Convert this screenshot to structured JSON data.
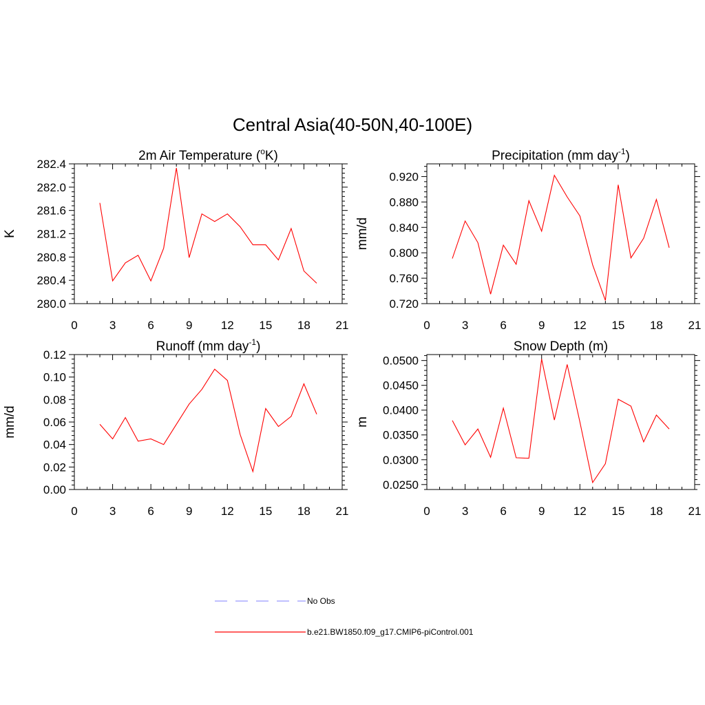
{
  "figure": {
    "title": "Central Asia(40-50N,40-100E)"
  },
  "colors": {
    "model_line": "#ff0000",
    "obs_line": "#9999ff",
    "axis": "#000000",
    "background": "#ffffff"
  },
  "legend": {
    "placement": "bottom-center",
    "entries": [
      {
        "label": "No Obs",
        "color": "#9999ff",
        "style": "dashed"
      },
      {
        "label": "b.e21.BW1850.f09_g17.CMIP6-piControl.001",
        "color": "#ff0000",
        "style": "solid"
      }
    ]
  },
  "chart_data": [
    {
      "type": "line",
      "title": "2m Air Temperature (",
      "title_sup": "o",
      "title_post": "K)",
      "ylabel": "K",
      "xlim": [
        0,
        21
      ],
      "xticks": [
        "0",
        "3",
        "6",
        "9",
        "12",
        "15",
        "18",
        "21"
      ],
      "ylim": [
        280.0,
        282.4
      ],
      "yticks": [
        "280.0",
        "280.4",
        "280.8",
        "281.2",
        "281.6",
        "282.0",
        "282.4"
      ],
      "grid": false,
      "series": [
        {
          "name": "b.e21.BW1850.f09_g17.CMIP6-piControl.001",
          "x": [
            2,
            3,
            4,
            5,
            6,
            7,
            8,
            9,
            10,
            11,
            12,
            13,
            14,
            15,
            16,
            17,
            18,
            19
          ],
          "y": [
            281.73,
            280.39,
            280.7,
            280.83,
            280.39,
            280.95,
            282.33,
            280.79,
            281.54,
            281.41,
            281.54,
            281.32,
            281.01,
            281.01,
            280.75,
            281.29,
            280.56,
            280.35
          ]
        }
      ]
    },
    {
      "type": "line",
      "title": "Precipitation (mm day",
      "title_sup": "-1",
      "title_post": ")",
      "ylabel": "mm/d",
      "xlim": [
        0,
        21
      ],
      "xticks": [
        "0",
        "3",
        "6",
        "9",
        "12",
        "15",
        "18",
        "21"
      ],
      "ylim": [
        0.72,
        0.94
      ],
      "yticks": [
        "0.720",
        "0.760",
        "0.800",
        "0.840",
        "0.880",
        "0.920"
      ],
      "grid": false,
      "series": [
        {
          "name": "b.e21.BW1850.f09_g17.CMIP6-piControl.001",
          "x": [
            2,
            3,
            4,
            5,
            6,
            7,
            8,
            9,
            10,
            11,
            12,
            13,
            14,
            15,
            16,
            17,
            18,
            19
          ],
          "y": [
            0.791,
            0.85,
            0.816,
            0.735,
            0.812,
            0.782,
            0.882,
            0.834,
            0.922,
            0.888,
            0.858,
            0.781,
            0.725,
            0.907,
            0.792,
            0.823,
            0.884,
            0.808
          ]
        }
      ]
    },
    {
      "type": "line",
      "title": "Runoff (mm day",
      "title_sup": "-1",
      "title_post": ")",
      "ylabel": "mm/d",
      "xlim": [
        0,
        21
      ],
      "xticks": [
        "0",
        "3",
        "6",
        "9",
        "12",
        "15",
        "18",
        "21"
      ],
      "ylim": [
        0.0,
        0.12
      ],
      "yticks": [
        "0.00",
        "0.02",
        "0.04",
        "0.06",
        "0.08",
        "0.10",
        "0.12"
      ],
      "grid": false,
      "series": [
        {
          "name": "b.e21.BW1850.f09_g17.CMIP6-piControl.001",
          "x": [
            2,
            3,
            4,
            5,
            6,
            7,
            8,
            9,
            10,
            11,
            12,
            13,
            14,
            15,
            16,
            17,
            18,
            19
          ],
          "y": [
            0.058,
            0.045,
            0.064,
            0.043,
            0.045,
            0.04,
            0.058,
            0.076,
            0.089,
            0.107,
            0.097,
            0.049,
            0.016,
            0.072,
            0.056,
            0.065,
            0.094,
            0.067
          ]
        }
      ]
    },
    {
      "type": "line",
      "title": "Snow Depth (m)",
      "title_sup": "",
      "title_post": "",
      "ylabel": "m",
      "xlim": [
        0,
        21
      ],
      "xticks": [
        "0",
        "3",
        "6",
        "9",
        "12",
        "15",
        "18",
        "21"
      ],
      "ylim": [
        0.024,
        0.0512
      ],
      "yticks": [
        "0.0250",
        "0.0300",
        "0.0350",
        "0.0400",
        "0.0450",
        "0.0500"
      ],
      "grid": false,
      "series": [
        {
          "name": "b.e21.BW1850.f09_g17.CMIP6-piControl.001",
          "x": [
            2,
            3,
            4,
            5,
            6,
            7,
            8,
            9,
            10,
            11,
            12,
            13,
            14,
            15,
            16,
            17,
            18,
            19
          ],
          "y": [
            0.0379,
            0.033,
            0.0362,
            0.0305,
            0.0404,
            0.0304,
            0.0303,
            0.0503,
            0.038,
            0.0492,
            0.0376,
            0.0254,
            0.0292,
            0.0422,
            0.0408,
            0.0336,
            0.039,
            0.0362
          ]
        }
      ]
    }
  ]
}
